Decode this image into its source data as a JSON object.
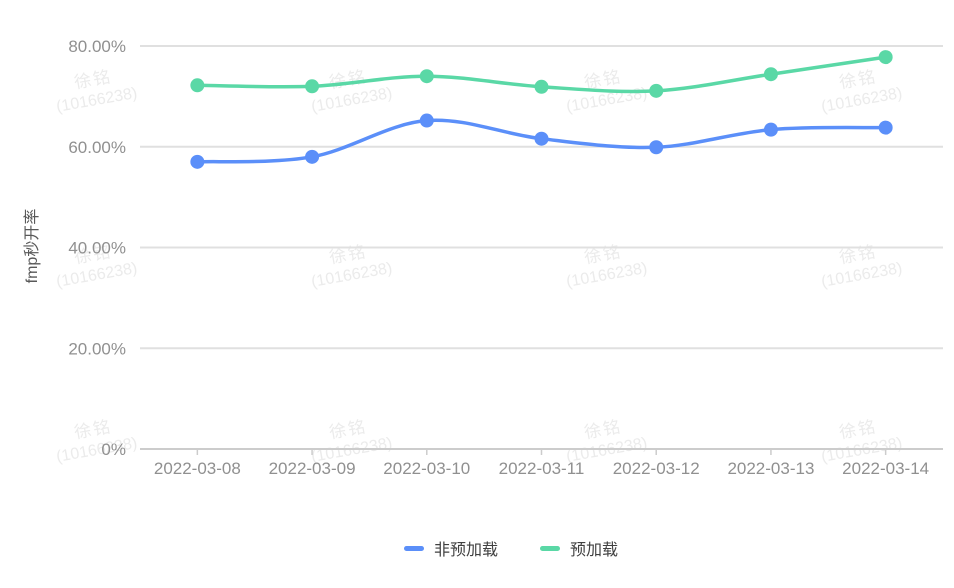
{
  "chart_data": {
    "type": "line",
    "title": "",
    "x_categories": [
      "2022-03-08",
      "2022-03-09",
      "2022-03-10",
      "2022-03-11",
      "2022-03-12",
      "2022-03-13",
      "2022-03-14"
    ],
    "series": [
      {
        "name": "非预加载",
        "color": "#5b8ff9",
        "values": [
          57.0,
          58.0,
          65.2,
          61.6,
          59.9,
          63.4,
          63.8
        ]
      },
      {
        "name": "预加载",
        "color": "#5ad8a6",
        "values": [
          72.2,
          72.0,
          74.0,
          71.9,
          71.1,
          74.4,
          77.8
        ]
      }
    ],
    "xlabel": "",
    "ylabel": "fmp秒开率",
    "ylim": [
      0,
      80
    ],
    "y_ticks": [
      {
        "value": 0,
        "label": "0%"
      },
      {
        "value": 20,
        "label": "20.00%"
      },
      {
        "value": 40,
        "label": "40.00%"
      },
      {
        "value": 60,
        "label": "60.00%"
      },
      {
        "value": 80,
        "label": "80.00%"
      }
    ],
    "grid": true,
    "legend_position": "bottom"
  },
  "watermark": {
    "line1": "徐铭",
    "line2": "(10166238)"
  },
  "colors": {
    "grid": "#e0e0e0",
    "axis": "#cccccc",
    "tick_text": "#909090",
    "axis_title_text": "#595959",
    "legend_text": "#404040",
    "watermark": "#ebebeb",
    "background": "#ffffff"
  }
}
